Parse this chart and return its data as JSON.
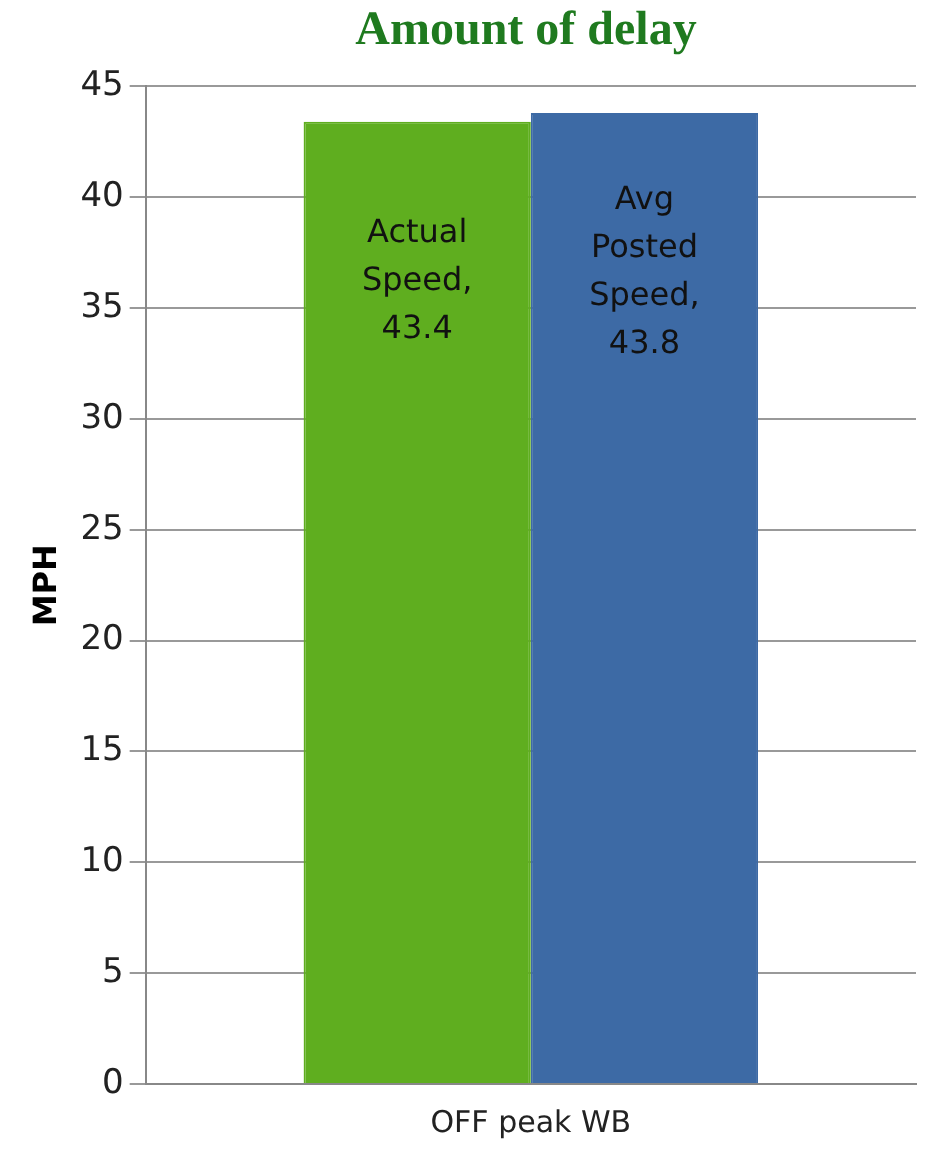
{
  "chart_data": {
    "type": "bar",
    "title": "Amount of delay",
    "ylabel": "MPH",
    "categories": [
      "OFF peak WB"
    ],
    "series": [
      {
        "color": "#5fae1f",
        "values": [
          43.4
        ],
        "value_labels": [
          "Actual Speed, 43.4"
        ]
      },
      {
        "color": "#3d6aa5",
        "values": [
          43.8
        ],
        "value_labels": [
          "Avg Posted Speed, 43.8"
        ]
      }
    ],
    "ylim": [
      0,
      45
    ],
    "yticks": [
      0,
      5,
      10,
      15,
      20,
      25,
      30,
      35,
      40,
      45
    ],
    "grid": "y",
    "legend": false
  }
}
